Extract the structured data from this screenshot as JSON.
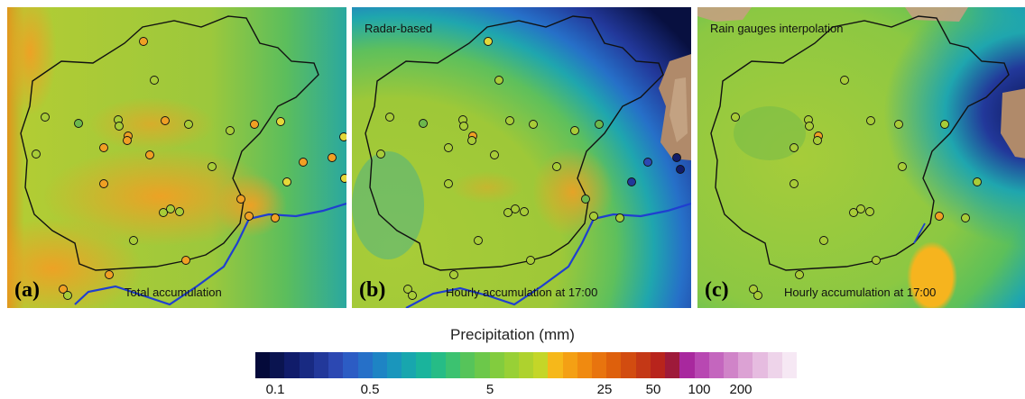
{
  "panels": [
    {
      "letter": "(a)",
      "caption": "Total accumulation",
      "top_caption": ""
    },
    {
      "letter": "(b)",
      "caption": "Hourly accumulation at 17:00",
      "top_caption": "Radar-based"
    },
    {
      "letter": "(c)",
      "caption": "Hourly accumulation at 17:00",
      "top_caption": "Rain gauges interpolation"
    }
  ],
  "legend": {
    "title": "Precipitation (mm)",
    "ticks": [
      "0.1",
      "0.5",
      "5",
      "25",
      "50",
      "100",
      "200"
    ],
    "colors": [
      "#040a3a",
      "#0a1450",
      "#101c6a",
      "#182a82",
      "#22389a",
      "#2c48b2",
      "#2c5cc4",
      "#2670c8",
      "#1e84c4",
      "#1a96bc",
      "#18a6ae",
      "#1ab49c",
      "#26bc86",
      "#3cc270",
      "#56c45a",
      "#6cc84a",
      "#82cc3e",
      "#98d036",
      "#aed22e",
      "#c4d628",
      "#f6b81a",
      "#f4a014",
      "#f08a10",
      "#e8740e",
      "#de600c",
      "#d24c10",
      "#c43816",
      "#b8241c",
      "#9e1a3a",
      "#a8289e",
      "#b848b2",
      "#c466be",
      "#d084c8",
      "#dca2d4",
      "#e6bce0",
      "#eed4ea",
      "#f6e8f4"
    ]
  }
}
